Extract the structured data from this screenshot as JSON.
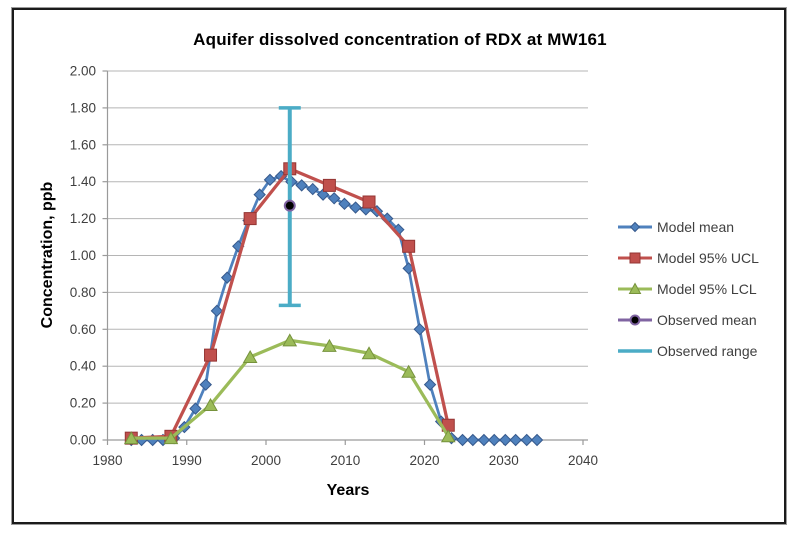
{
  "chart_data": {
    "type": "line",
    "title": "Aquifer dissolved concentration of RDX at MW161",
    "xlabel": "Years",
    "ylabel": "Concentration, ppb",
    "xlim": [
      1980,
      2040
    ],
    "ylim": [
      0.0,
      2.0
    ],
    "x_ticks": [
      1980,
      1990,
      2000,
      2010,
      2020,
      2030,
      2040
    ],
    "y_ticks": [
      0.0,
      0.2,
      0.4,
      0.6,
      0.8,
      1.0,
      1.2,
      1.4,
      1.6,
      1.8,
      2.0
    ],
    "grid": "horizontal",
    "legend_position": "right",
    "colors": {
      "gridline": "#b5b5b5",
      "axis": "#9a9a9a",
      "tick_text": "#3f3f3f",
      "title_text": "#000000"
    },
    "series": [
      {
        "name": "Model mean",
        "color": "#4F81BD",
        "edge": "#36598C",
        "marker": "diamond",
        "x": [
          1983.0,
          1984.3,
          1985.7,
          1987.0,
          1988.4,
          1989.7,
          1991.1,
          1992.4,
          1993.8,
          1995.1,
          1996.5,
          1997.8,
          1999.2,
          2000.5,
          2001.9,
          2003.2,
          2004.5,
          2005.9,
          2007.2,
          2008.6,
          2009.9,
          2011.3,
          2012.6,
          2014.0,
          2015.3,
          2016.7,
          2018.0,
          2019.4,
          2020.7,
          2022.1,
          2023.4,
          2024.8,
          2026.1,
          2027.5,
          2028.8,
          2030.2,
          2031.5,
          2032.9,
          2034.2
        ],
        "y": [
          0.0,
          0.0,
          0.0,
          0.0,
          0.01,
          0.07,
          0.17,
          0.3,
          0.7,
          0.88,
          1.05,
          1.19,
          1.33,
          1.41,
          1.43,
          1.4,
          1.38,
          1.36,
          1.33,
          1.31,
          1.28,
          1.26,
          1.25,
          1.24,
          1.2,
          1.14,
          0.93,
          0.6,
          0.3,
          0.1,
          0.01,
          0.0,
          0.0,
          0.0,
          0.0,
          0.0,
          0.0,
          0.0,
          0.0
        ]
      },
      {
        "name": "Model 95% UCL",
        "color": "#C0504D",
        "edge": "#943634",
        "marker": "square",
        "x": [
          1983,
          1988,
          1993,
          1998,
          2003,
          2008,
          2013,
          2018,
          2023
        ],
        "y": [
          0.01,
          0.02,
          0.46,
          1.2,
          1.47,
          1.38,
          1.29,
          1.05,
          0.08
        ]
      },
      {
        "name": "Model 95% LCL",
        "color": "#9BBB59",
        "edge": "#76923C",
        "marker": "triangle",
        "x": [
          1983,
          1988,
          1993,
          1998,
          2003,
          2008,
          2013,
          2018,
          2023
        ],
        "y": [
          0.01,
          0.01,
          0.19,
          0.45,
          0.54,
          0.51,
          0.47,
          0.37,
          0.02
        ]
      },
      {
        "name": "Observed mean",
        "color": "#8064A2",
        "marker": "circle",
        "marker_fill": "#000000",
        "x": [
          2003
        ],
        "y": [
          1.27
        ]
      },
      {
        "name": "Observed range",
        "color": "#4BACC6",
        "marker": "errorbar",
        "x": [
          2003
        ],
        "low": [
          0.73
        ],
        "high": [
          1.8
        ]
      }
    ]
  }
}
